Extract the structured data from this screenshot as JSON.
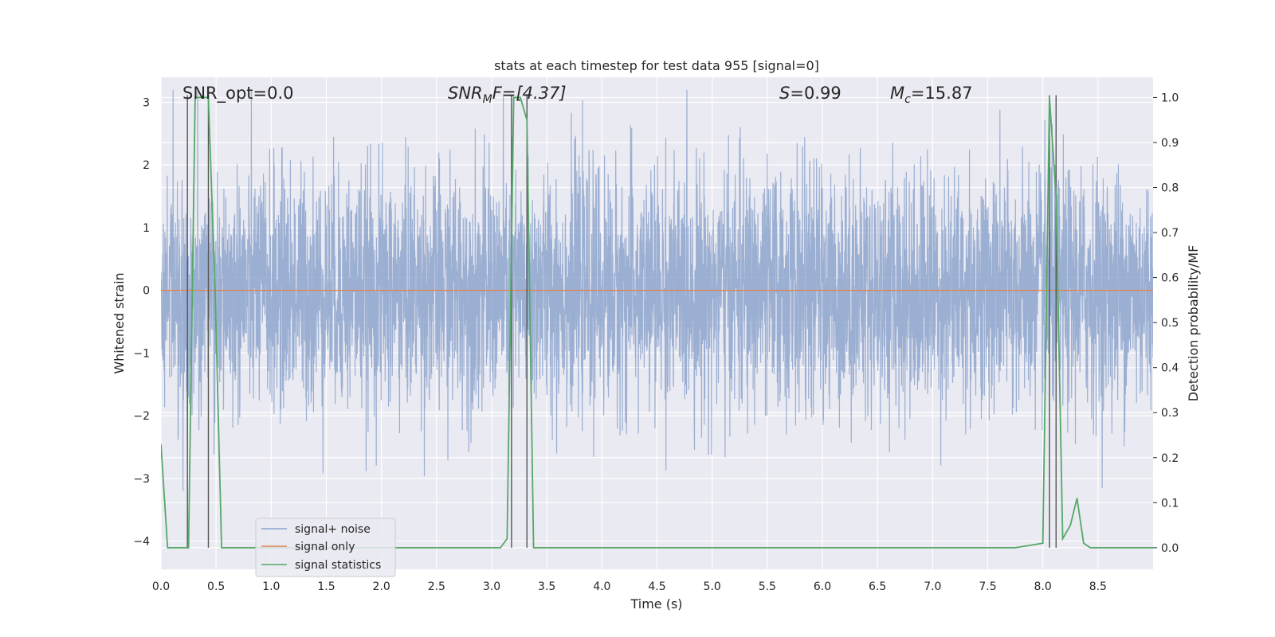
{
  "chart_data": {
    "type": "line",
    "title": "stats at each timestep for test data 955 [signal=0]",
    "xlabel": "Time (s)",
    "ylabel": "Whitened strain",
    "ylabel_right": "Detection probability/MF",
    "xlim": [
      0,
      9.0
    ],
    "ylim": [
      -4.45,
      3.4
    ],
    "ylim_right": [
      -0.048,
      1.045
    ],
    "x_ticks": [
      0.0,
      0.5,
      1.0,
      1.5,
      2.0,
      2.5,
      3.0,
      3.5,
      4.0,
      4.5,
      5.0,
      5.5,
      6.0,
      6.5,
      7.0,
      7.5,
      8.0,
      8.5
    ],
    "x_tick_labels": [
      "0.0",
      "0.5",
      "1.0",
      "1.5",
      "2.0",
      "2.5",
      "3.0",
      "3.5",
      "4.0",
      "4.5",
      "5.0",
      "5.5",
      "6.0",
      "6.5",
      "7.0",
      "7.5",
      "8.0",
      "8.5"
    ],
    "y_ticks": [
      3,
      2,
      1,
      0,
      -1,
      -2,
      -3,
      -4
    ],
    "y_tick_labels": [
      "3",
      "2",
      "1",
      "0",
      "−1",
      "−2",
      "−3",
      "−4"
    ],
    "y_ticks_right": [
      1.0,
      0.9,
      0.8,
      0.7,
      0.6,
      0.5,
      0.4,
      0.3,
      0.2,
      0.1,
      0.0
    ],
    "y_tick_labels_right": [
      "1.0",
      "0.9",
      "0.8",
      "0.7",
      "0.6",
      "0.5",
      "0.4",
      "0.3",
      "0.2",
      "0.1",
      "0.0"
    ],
    "grid": true,
    "legend_position": "lower-left",
    "annotations": {
      "snr_opt": "SNR_opt=0.0",
      "snr_mf_main": "SNR",
      "snr_mf_sub": "M",
      "snr_mf_rest": "F=[4.37]",
      "s_label": "S",
      "s_value": "=0.99",
      "mc_label": "M",
      "mc_sub": "c",
      "mc_value": "=15.87"
    },
    "series": [
      {
        "name": "signal+ noise",
        "color": "#8da4cc",
        "axis": "left",
        "envelope": {
          "x_range": [
            0,
            9.0
          ],
          "typical_abs": 1.6,
          "max_abs": 3.2
        }
      },
      {
        "name": "signal only",
        "color": "#dd8452",
        "axis": "left",
        "x": [
          0,
          9.0
        ],
        "y": [
          0,
          0
        ]
      },
      {
        "name": "signal statistics",
        "color": "#55a868",
        "axis": "right",
        "x": [
          0.0,
          0.06,
          0.12,
          0.18,
          0.25,
          0.31,
          0.37,
          0.43,
          0.49,
          0.55,
          0.62,
          1.0,
          2.0,
          3.0,
          3.08,
          3.14,
          3.2,
          3.26,
          3.32,
          3.38,
          3.45,
          4.0,
          5.0,
          6.0,
          7.0,
          7.5,
          7.75,
          8.0,
          8.06,
          8.12,
          8.18,
          8.25,
          8.31,
          8.37,
          8.43,
          8.5,
          9.0
        ],
        "y": [
          0.23,
          0.0,
          0.0,
          0.0,
          0.0,
          1.0,
          1.0,
          1.0,
          0.58,
          0.0,
          0.0,
          0.0,
          0.0,
          0.0,
          0.0,
          0.02,
          1.0,
          1.0,
          0.95,
          0.0,
          0.0,
          0.0,
          0.0,
          0.0,
          0.0,
          0.0,
          0.0,
          0.01,
          1.0,
          0.78,
          0.02,
          0.05,
          0.11,
          0.01,
          0.0,
          0.0,
          0.0
        ]
      }
    ],
    "vertical_markers_x": [
      0.24,
      0.43,
      3.18,
      3.32,
      8.06,
      8.12
    ]
  }
}
